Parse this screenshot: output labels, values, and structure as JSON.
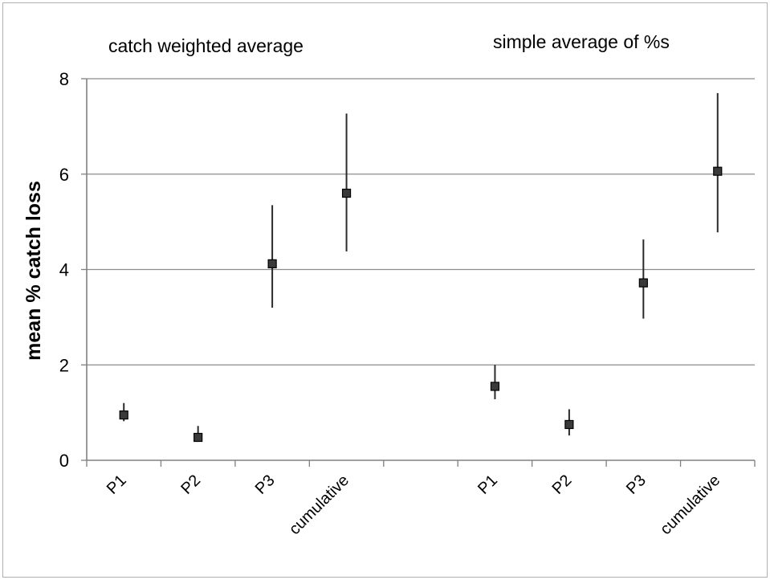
{
  "chart_data": {
    "type": "scatter",
    "categories": [
      "P1",
      "P2",
      "P3",
      "cumulative",
      "",
      "P1",
      "P2",
      "P3",
      "cumulative"
    ],
    "ylabel": "mean % catch loss",
    "xlabel": "",
    "ylim": [
      0,
      8
    ],
    "yticks": [
      "0",
      "2",
      "4",
      "6",
      "8"
    ],
    "grid": true,
    "annotations": [
      "catch weighted average",
      "simple average of %s"
    ],
    "series": [
      {
        "points": [
          {
            "category_index": 0,
            "y": 0.95,
            "low": 0.82,
            "high": 1.2
          },
          {
            "category_index": 1,
            "y": 0.48,
            "low": 0.4,
            "high": 0.72
          },
          {
            "category_index": 2,
            "y": 4.12,
            "low": 3.2,
            "high": 5.35
          },
          {
            "category_index": 3,
            "y": 5.6,
            "low": 4.38,
            "high": 7.27
          }
        ]
      },
      {
        "points": [
          {
            "category_index": 5,
            "y": 1.55,
            "low": 1.28,
            "high": 2.0
          },
          {
            "category_index": 6,
            "y": 0.75,
            "low": 0.52,
            "high": 1.07
          },
          {
            "category_index": 7,
            "y": 3.72,
            "low": 2.97,
            "high": 4.63
          },
          {
            "category_index": 8,
            "y": 6.06,
            "low": 4.78,
            "high": 7.7
          }
        ]
      }
    ],
    "colors": {
      "marker": "#3a3a3a",
      "error_bar": "#2a2a2a",
      "grid": "#8c8c8c",
      "axis": "#808080",
      "frame": "#b0b0b0"
    }
  }
}
